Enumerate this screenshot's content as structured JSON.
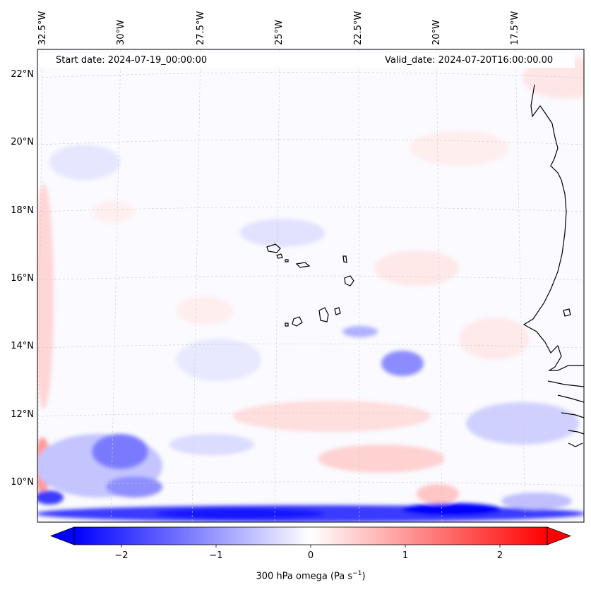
{
  "map": {
    "start_date_text": "Start date: 2024-07-19_00:00:00",
    "valid_date_text": "Valid_date: 2024-07-20T16:00:00.00",
    "lon_labels": [
      "32.5°W",
      "30°W",
      "27.5°W",
      "25°W",
      "22.5°W",
      "20°W",
      "17.5°W"
    ],
    "lat_labels": [
      "22°N",
      "20°N",
      "18°N",
      "16°N",
      "14°N",
      "12°N",
      "10°N"
    ],
    "field": "300 hPa omega",
    "colormap": "bwr",
    "colors": {
      "negative": "#0000ff",
      "zero": "#ffffff",
      "positive": "#ff0000",
      "coastline": "#000000"
    }
  },
  "colorbar": {
    "ticks": [
      "−2",
      "−1",
      "0",
      "1",
      "2"
    ],
    "tick_values": [
      -2,
      -1,
      0,
      1,
      2
    ],
    "range": [
      -2.5,
      2.5
    ],
    "label_main": "300 hPa omega (Pa s",
    "label_sup": "−1",
    "label_end": ")"
  }
}
